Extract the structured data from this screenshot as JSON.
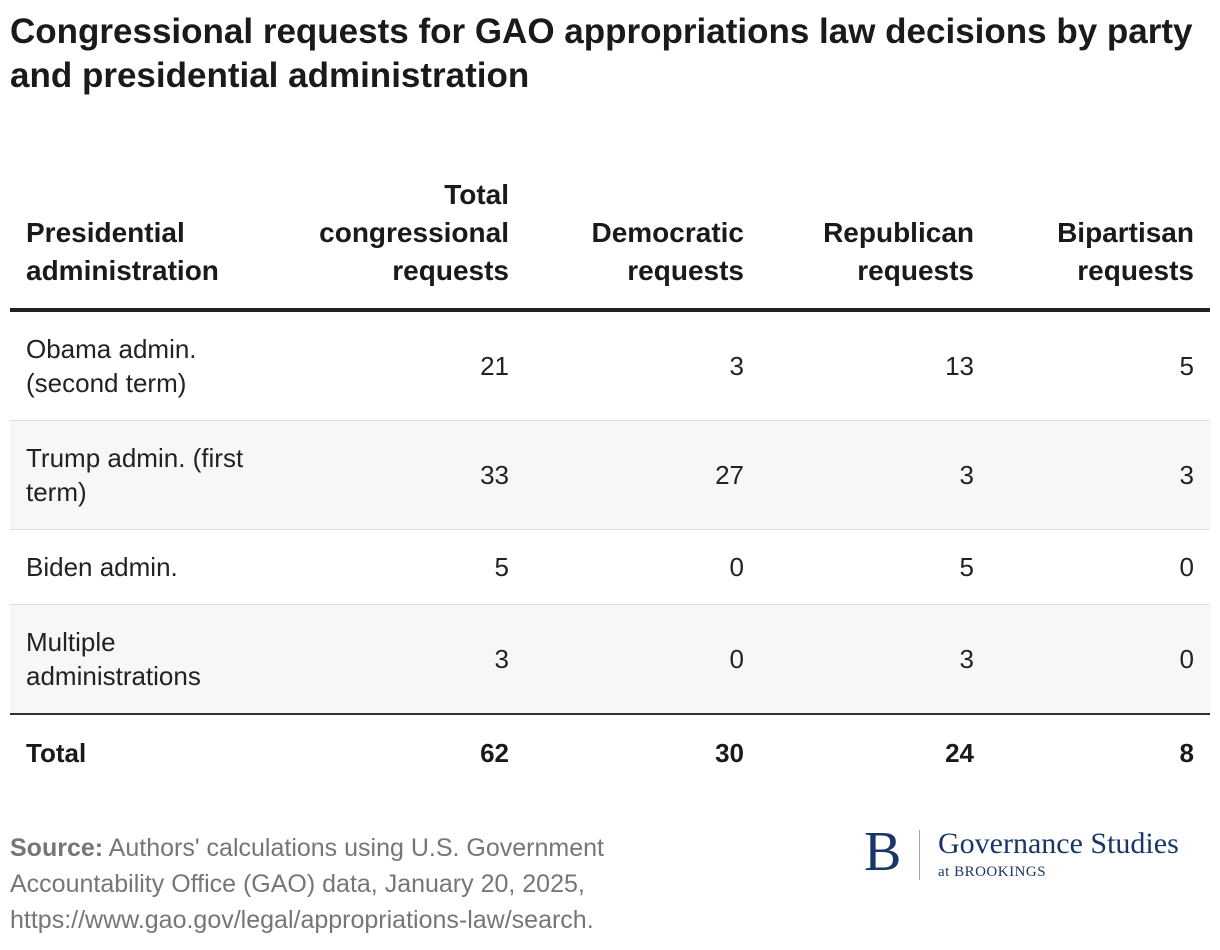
{
  "chart_data": {
    "type": "table",
    "title": "Congressional requests for GAO appropriations law decisions by party and presidential administration",
    "columns": [
      "Presidential administration",
      "Total congressional requests",
      "Democratic requests",
      "Republican requests",
      "Bipartisan requests"
    ],
    "rows": [
      [
        "Obama admin. (second term)",
        "21",
        "3",
        "13",
        "5"
      ],
      [
        "Trump admin. (first term)",
        "33",
        "27",
        "3",
        "3"
      ],
      [
        "Biden admin.",
        "5",
        "0",
        "5",
        "0"
      ],
      [
        "Multiple administrations",
        "3",
        "0",
        "3",
        "0"
      ]
    ],
    "total_row": [
      "Total",
      "62",
      "30",
      "24",
      "8"
    ]
  },
  "source": {
    "label": "Source:",
    "text": "Authors' calculations using U.S. Government Accountability Office (GAO) data, January 20, 2025, https://www.gao.gov/legal/appropriations-law/search."
  },
  "logo": {
    "mark": "B",
    "name": "Governance Studies",
    "sub": "at BROOKINGS",
    "color": "#1a3668"
  }
}
